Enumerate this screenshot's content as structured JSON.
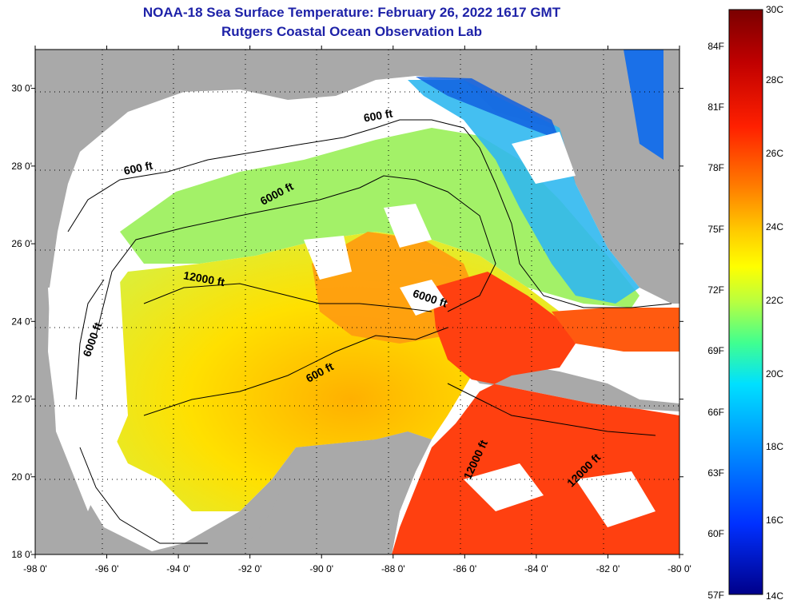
{
  "title_line1": "NOAA-18 Sea Surface Temperature:  February 26, 2022 1617 GMT",
  "title_line2": "Rutgers Coastal Ocean Observation Lab",
  "map": {
    "lon_range": [
      -98,
      -80
    ],
    "lat_range": [
      18,
      31
    ],
    "grid": "dotted",
    "lon_ticks": [
      "-98 0'",
      "-96 0'",
      "-94 0'",
      "-92 0'",
      "-90 0'",
      "-88 0'",
      "-86 0'",
      "-84 0'",
      "-82 0'",
      "-80 0'"
    ],
    "lat_ticks": [
      "18 0'",
      "20 0'",
      "22 0'",
      "24 0'",
      "26 0'",
      "28 0'",
      "30 0'"
    ],
    "land_color": "#a9a9a9",
    "cloud_color": "#ffffff",
    "contour_labels": [
      {
        "text": "600 ft",
        "lon": -95.1,
        "lat": 27.85,
        "angle": -12
      },
      {
        "text": "600 ft",
        "lon": -88.4,
        "lat": 29.2,
        "angle": -10
      },
      {
        "text": "6000 ft",
        "lon": -91.2,
        "lat": 27.2,
        "angle": -28
      },
      {
        "text": "6000 ft",
        "lon": -96.3,
        "lat": 23.5,
        "angle": -70
      },
      {
        "text": "6000 ft",
        "lon": -87.0,
        "lat": 24.5,
        "angle": 18
      },
      {
        "text": "12000 ft",
        "lon": -93.3,
        "lat": 25.0,
        "angle": 10
      },
      {
        "text": "600 ft",
        "lon": -90.0,
        "lat": 22.6,
        "angle": -28
      },
      {
        "text": "12000 ft",
        "lon": -85.6,
        "lat": 20.4,
        "angle": -65
      },
      {
        "text": "12000 ft",
        "lon": -82.6,
        "lat": 20.1,
        "angle": -45
      }
    ]
  },
  "colorbar": {
    "top_label": "30C",
    "bottom_label": "14C",
    "celsius_labels": [
      "28C",
      "26C",
      "24C",
      "22C",
      "20C",
      "18C",
      "16C"
    ],
    "fahrenheit_labels": [
      "84F",
      "81F",
      "78F",
      "75F",
      "72F",
      "69F",
      "66F",
      "63F",
      "60F",
      "57F"
    ],
    "colors_top_to_bottom": [
      "#7a0000",
      "#c00000",
      "#ff2000",
      "#ff7a00",
      "#ffcc00",
      "#ffff00",
      "#b8ff40",
      "#40ff90",
      "#00e0ff",
      "#0090ff",
      "#0030ff",
      "#00008a"
    ]
  }
}
